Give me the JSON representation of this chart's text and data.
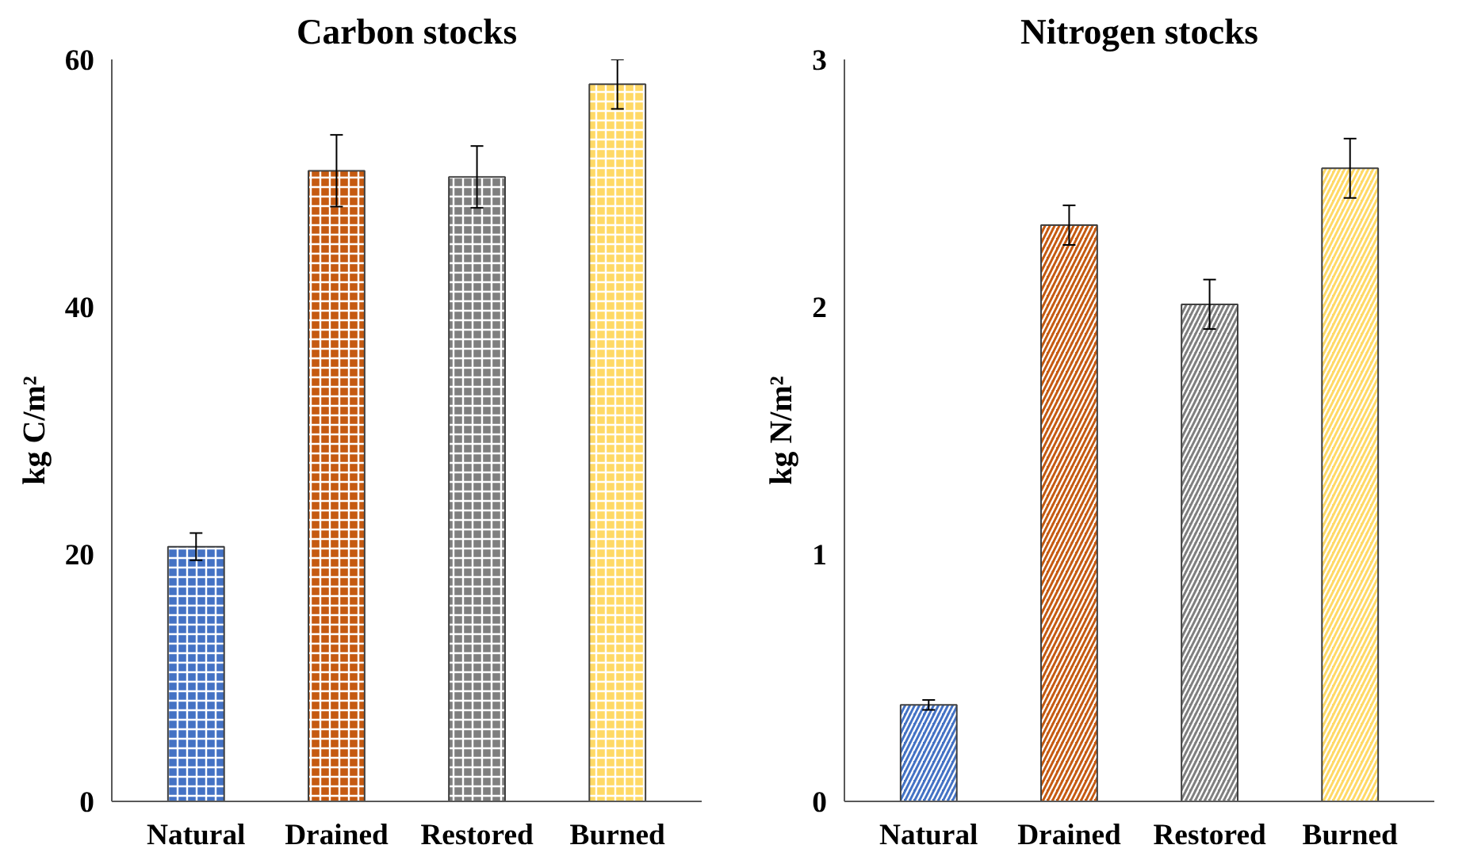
{
  "chart_data": [
    {
      "type": "bar",
      "title": "Carbon stocks",
      "ylabel": "kg C/m²",
      "categories": [
        "Natural",
        "Drained",
        "Restored",
        "Burned"
      ],
      "values": [
        20.6,
        51.0,
        50.5,
        58.0
      ],
      "errors": [
        1.1,
        2.9,
        2.5,
        2.0
      ],
      "colors": [
        "#4472c4",
        "#c55a11",
        "#7f7f7f",
        "#ffd966"
      ],
      "ylim": [
        0,
        60
      ],
      "yticks": [
        0,
        20,
        40,
        60
      ]
    },
    {
      "type": "bar",
      "title": "Nitrogen stocks",
      "ylabel": "kg N/m²",
      "categories": [
        "Natural",
        "Drained",
        "Restored",
        "Burned"
      ],
      "values": [
        0.39,
        2.33,
        2.01,
        2.56
      ],
      "errors": [
        0.02,
        0.08,
        0.1,
        0.12
      ],
      "colors": [
        "#4472c4",
        "#c55a11",
        "#7f7f7f",
        "#ffd966"
      ],
      "ylim": [
        0,
        3
      ],
      "yticks": [
        0,
        1,
        2,
        3
      ]
    }
  ]
}
